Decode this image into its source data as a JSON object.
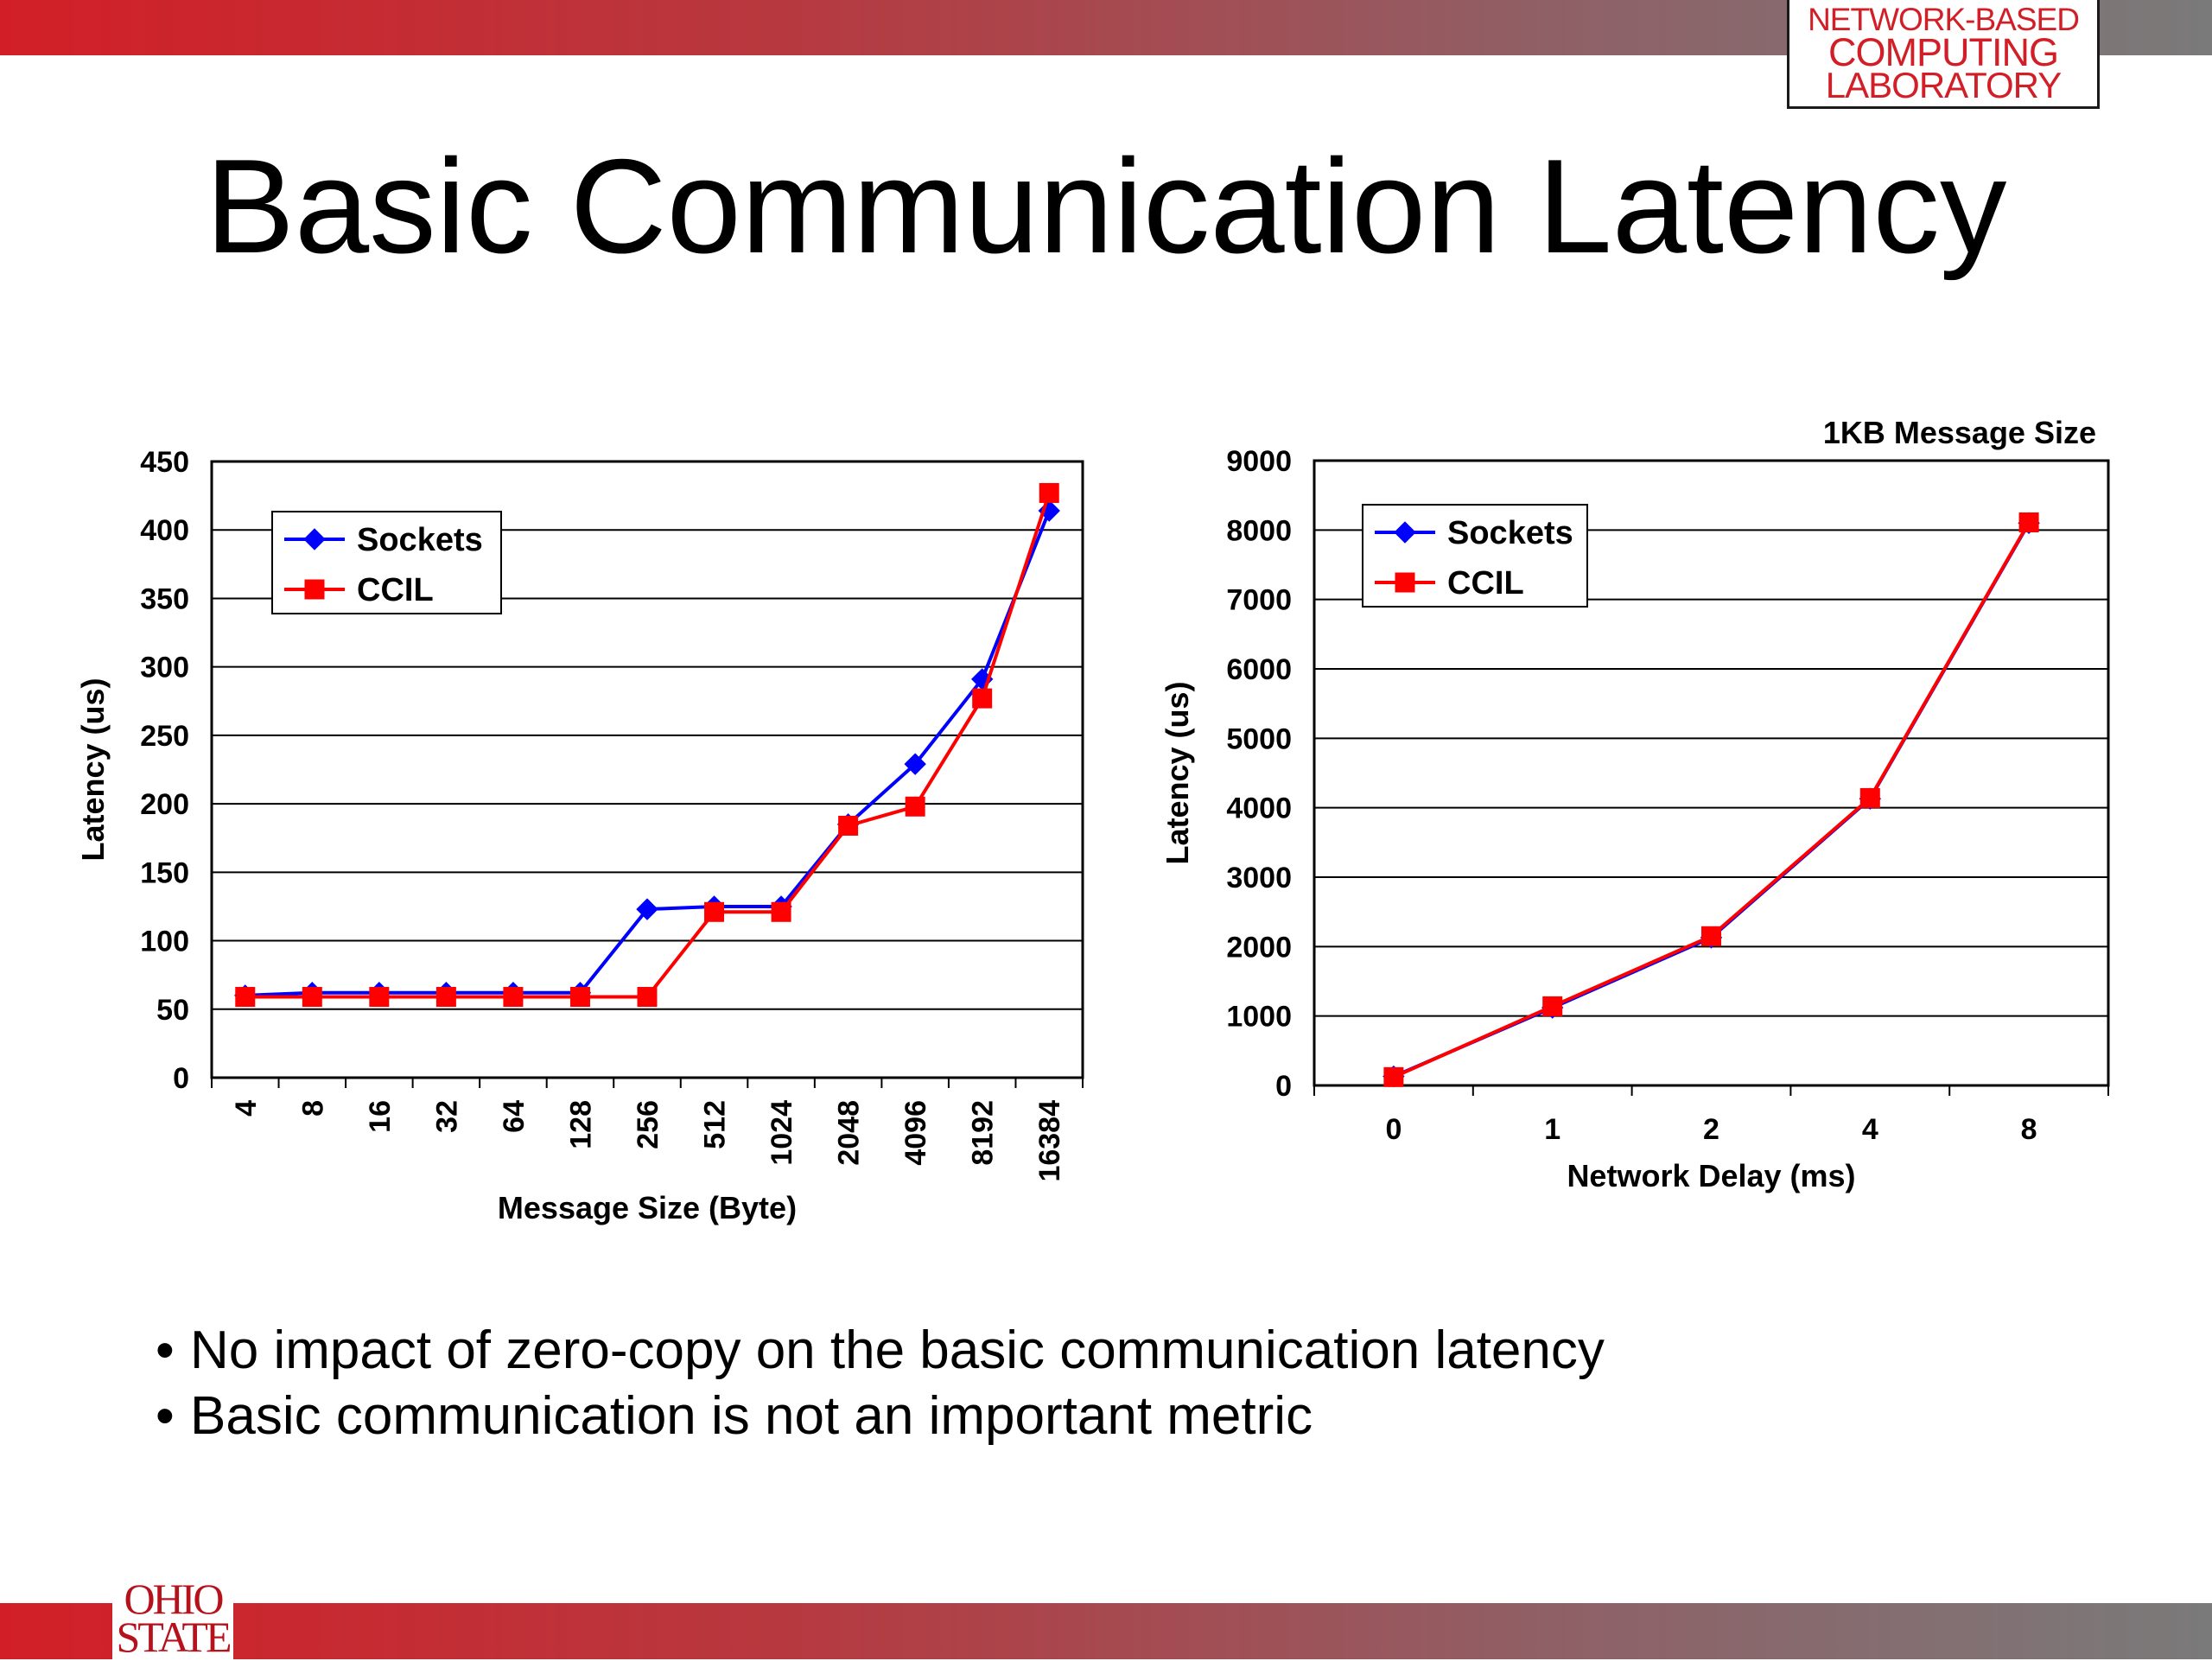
{
  "slide": {
    "title": "Basic Communication Latency",
    "lab_logo": [
      "NETWORK-BASED",
      "COMPUTING",
      "LABORATORY"
    ],
    "university_logo": [
      "OHIO",
      "STATE"
    ],
    "bullets": [
      "No impact of zero-copy on the basic communication latency",
      "Basic communication is not an important metric"
    ]
  },
  "colors": {
    "header_bar_start": "#d21f27",
    "header_bar_end": "#7a7a7a",
    "sockets": "#0000ff",
    "ccil": "#ff0000"
  },
  "chart_data": [
    {
      "type": "line",
      "title": "",
      "xlabel": "Message Size (Byte)",
      "ylabel": "Latency (us)",
      "categories": [
        "4",
        "8",
        "16",
        "32",
        "64",
        "128",
        "256",
        "512",
        "1024",
        "2048",
        "4096",
        "8192",
        "16384"
      ],
      "ylim": [
        0,
        450
      ],
      "yticks": [
        0,
        50,
        100,
        150,
        200,
        250,
        300,
        350,
        400,
        450
      ],
      "grid": true,
      "legend_position": "top-left",
      "series": [
        {
          "name": "Sockets",
          "marker": "diamond",
          "color": "#0000ff",
          "values": [
            60,
            62,
            62,
            62,
            62,
            62,
            123,
            125,
            125,
            185,
            229,
            291,
            414
          ]
        },
        {
          "name": "CCIL",
          "marker": "square",
          "color": "#ff0000",
          "values": [
            59,
            59,
            59,
            59,
            59,
            59,
            59,
            121,
            121,
            184,
            198,
            277,
            427
          ]
        }
      ]
    },
    {
      "type": "line",
      "title": "1KB Message Size",
      "xlabel": "Network Delay (ms)",
      "ylabel": "Latency (us)",
      "categories": [
        "0",
        "1",
        "2",
        "4",
        "8"
      ],
      "ylim": [
        0,
        9000
      ],
      "yticks": [
        0,
        1000,
        2000,
        3000,
        4000,
        5000,
        6000,
        7000,
        8000,
        9000
      ],
      "grid": true,
      "legend_position": "top-left",
      "series": [
        {
          "name": "Sockets",
          "marker": "diamond",
          "color": "#0000ff",
          "values": [
            130,
            1120,
            2130,
            4130,
            8100
          ]
        },
        {
          "name": "CCIL",
          "marker": "square",
          "color": "#ff0000",
          "values": [
            120,
            1140,
            2150,
            4140,
            8110
          ]
        }
      ]
    }
  ]
}
